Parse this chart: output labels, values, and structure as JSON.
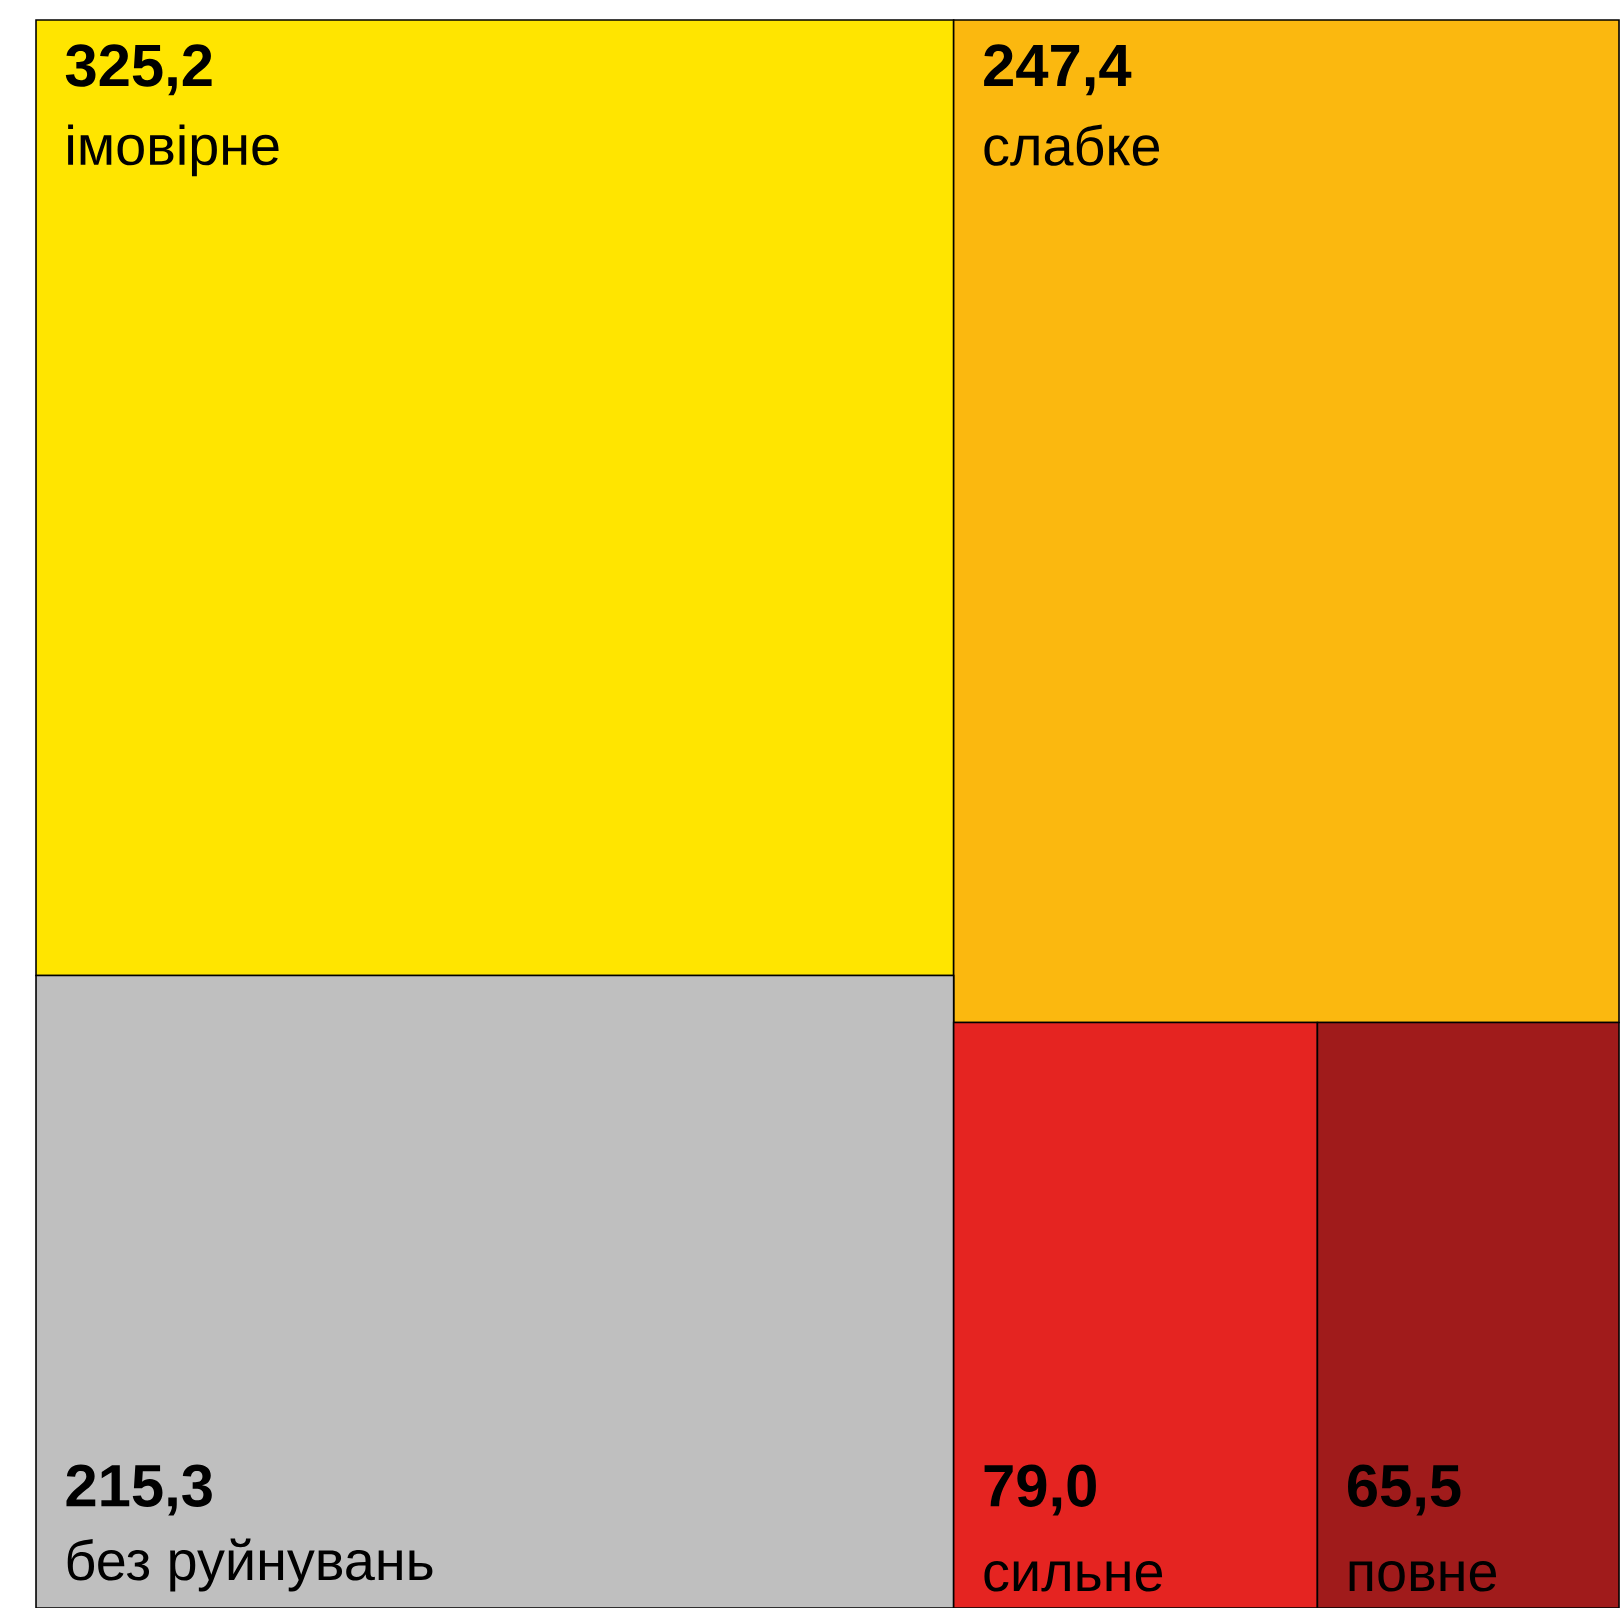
{
  "chart_data": {
    "type": "other",
    "categories": [
      "імовірне",
      "слабке",
      "без руйнувань",
      "сильне",
      "повне"
    ],
    "values": [
      325.2,
      247.4,
      215.3,
      79.0,
      65.5
    ],
    "value_labels": [
      "325,2",
      "247,4",
      "215,3",
      "79,0",
      "65,5"
    ],
    "colors": [
      "#ffe500",
      "#fbb80f",
      "#bfbfbf",
      "#e52421",
      "#a01b1b"
    ]
  }
}
